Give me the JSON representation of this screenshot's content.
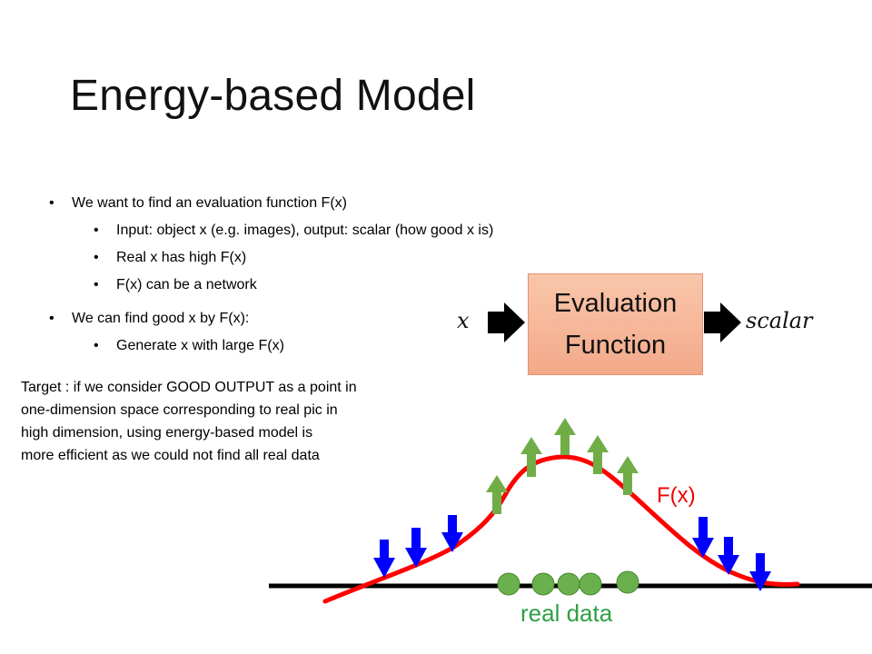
{
  "slide": {
    "title": "Energy-based Model",
    "bullets": [
      {
        "text": "We want to find an evaluation function F(x)"
      },
      {
        "text": "Input: object x (e.g. images), output: scalar (how good x is)"
      },
      {
        "text": "Real x has high F(x)"
      },
      {
        "text": "F(x) can be a network"
      },
      {
        "text": "We can find good x by F(x):"
      },
      {
        "text": "Generate x with large F(x)"
      }
    ],
    "target_lines": [
      "Target : if we consider GOOD OUTPUT as a point in",
      "one-dimension  space corresponding   to real pic in",
      "high dimension,  using energy-based  model is",
      "more efficient  as we could not find all real data"
    ]
  },
  "diagram": {
    "input_symbol": "x",
    "box_line1": "Evaluation",
    "box_line2": "Function",
    "output_symbol": "scalar",
    "curve_label": "F(x)",
    "data_label": "real data",
    "colors": {
      "curve": "#ff0000",
      "up_arrow": "#70ad47",
      "down_arrow": "#0000ff",
      "data_point": "#6ab04c",
      "box_fill": "#f4b183"
    }
  }
}
